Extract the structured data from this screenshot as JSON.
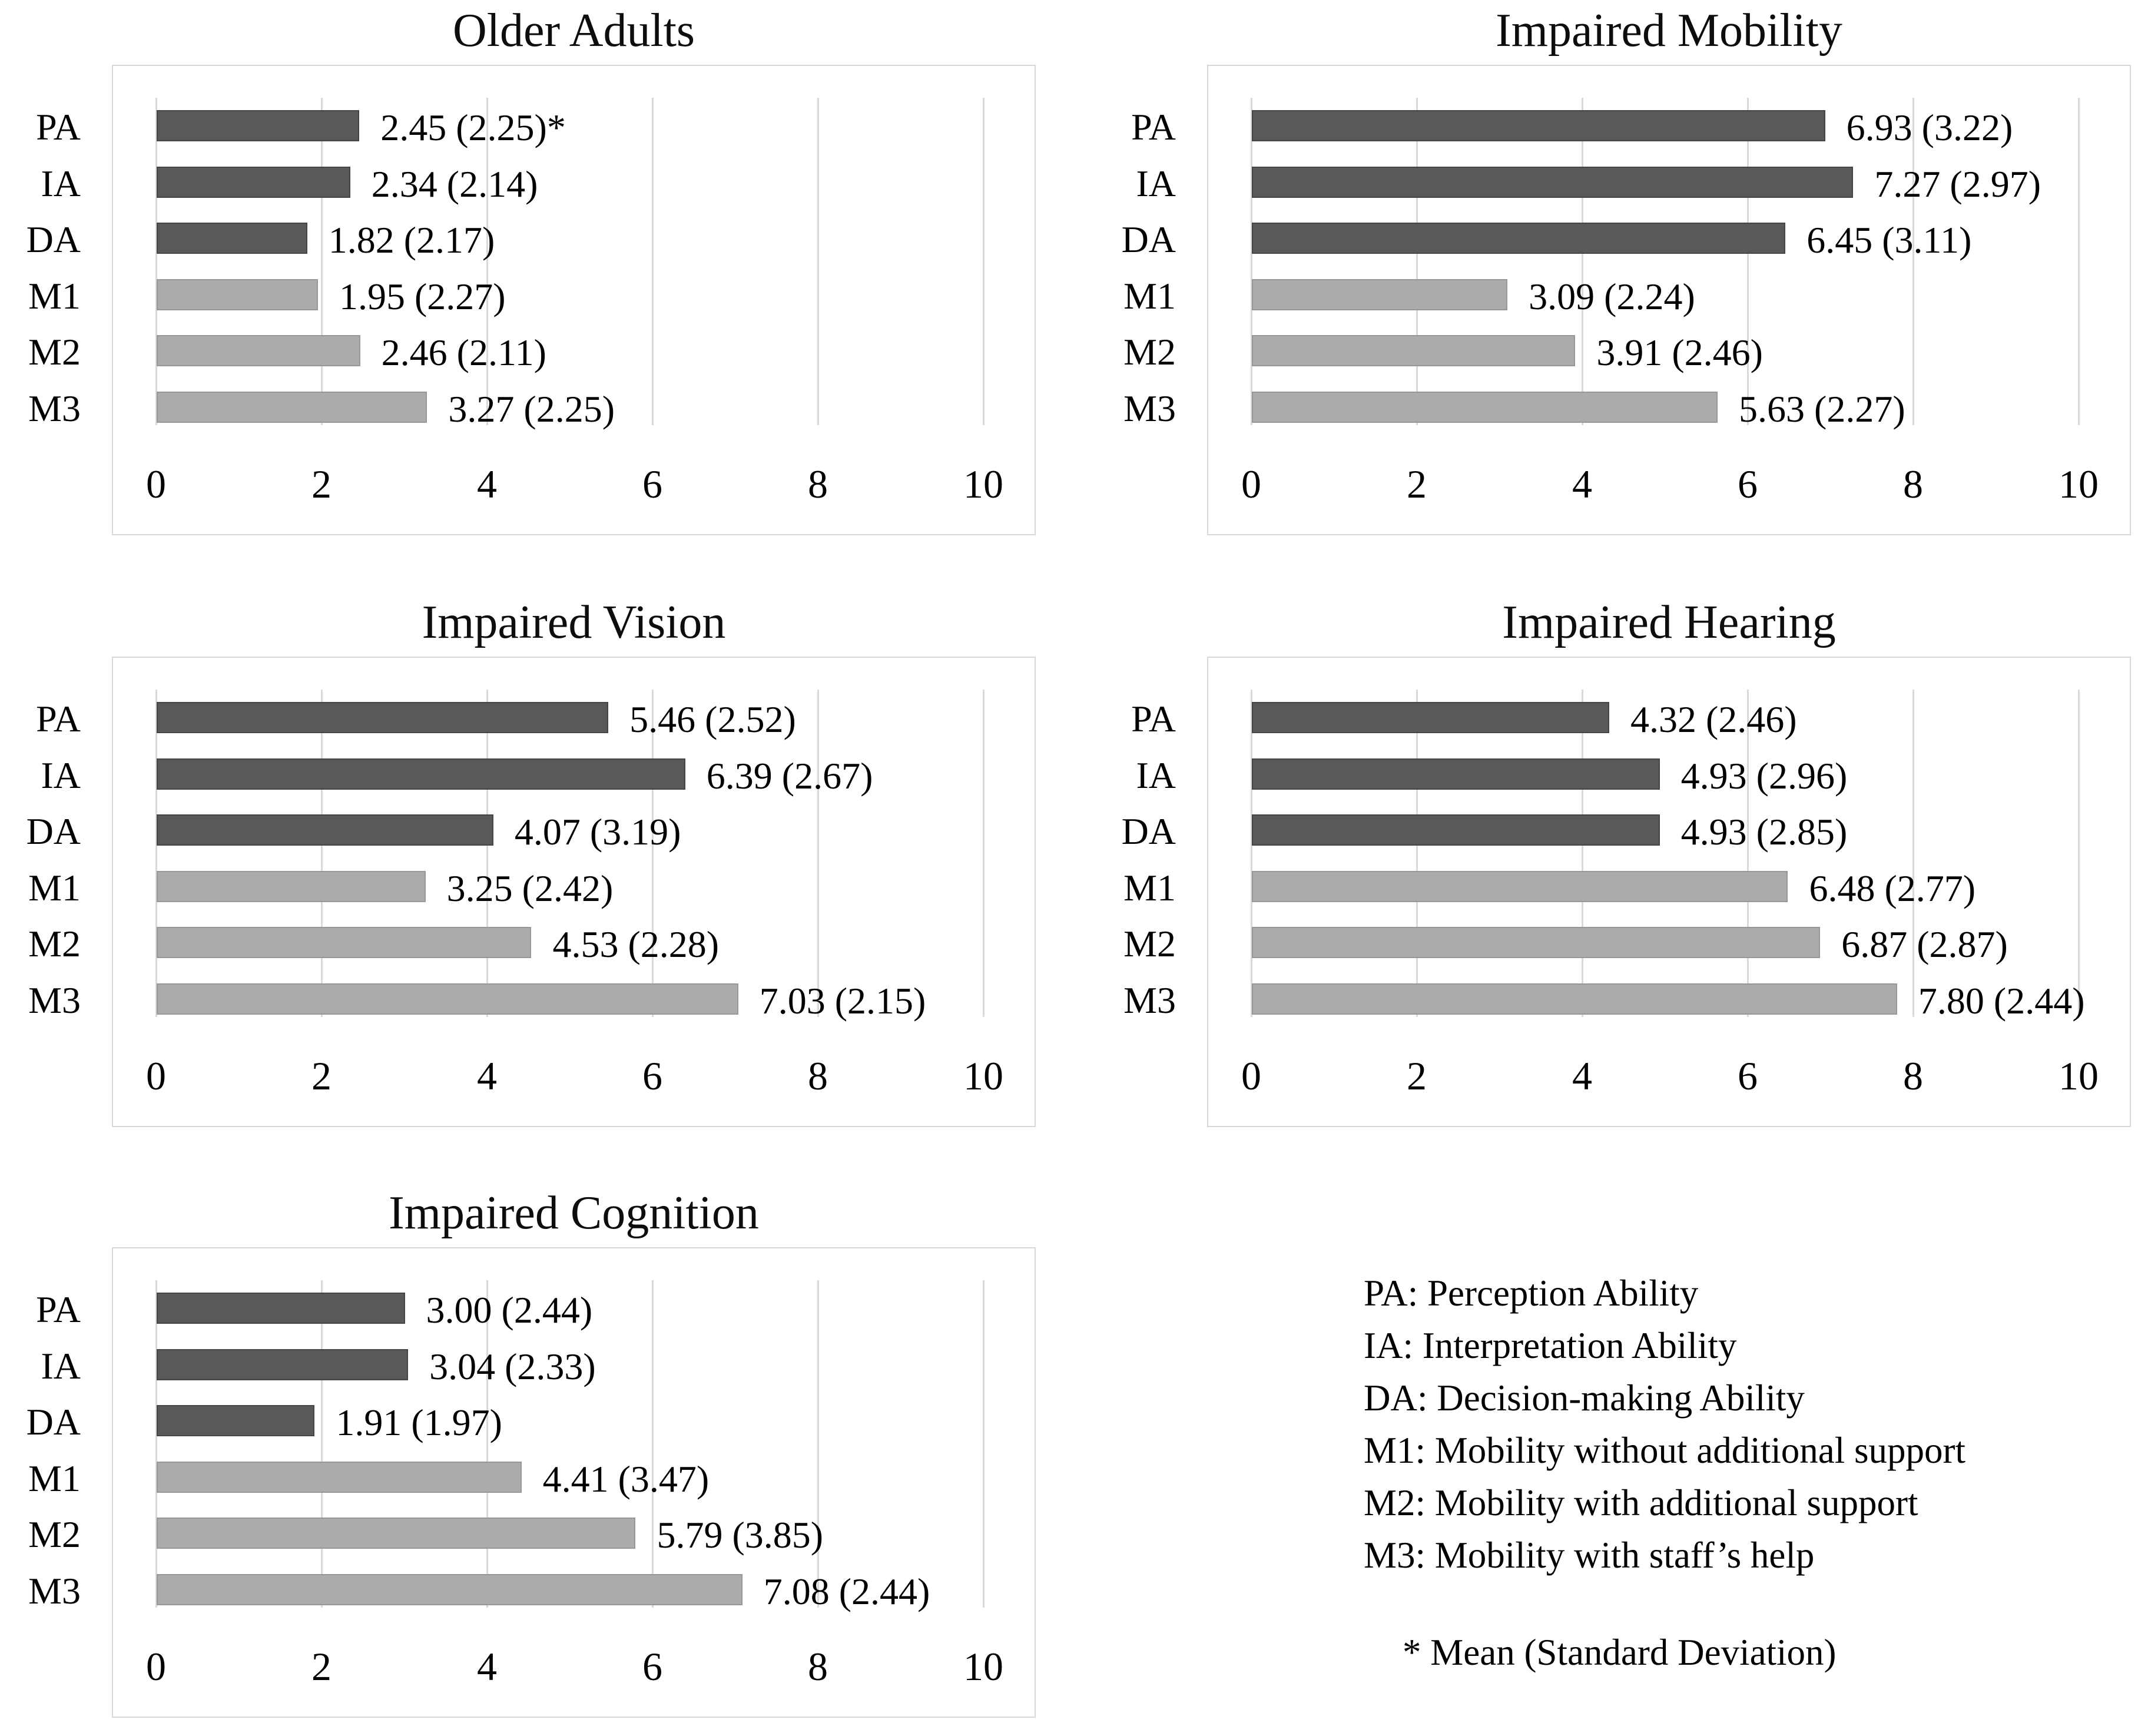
{
  "colors": {
    "dark_bar": "#595959",
    "dark_bar_border": "#454545",
    "light_bar": "#ababab",
    "light_bar_border": "#979797",
    "gridline": "#d9d9d9",
    "chart_border": "#d8d8d8",
    "text": "#000000"
  },
  "bar_shades": {
    "PA": "dark",
    "IA": "dark",
    "DA": "dark",
    "M1": "light",
    "M2": "light",
    "M3": "light"
  },
  "chart_data": [
    {
      "type": "bar",
      "orientation": "horizontal",
      "position": "top-left",
      "title": "Older Adults",
      "categories": [
        "PA",
        "IA",
        "DA",
        "M1",
        "M2",
        "M3"
      ],
      "means": [
        2.45,
        2.34,
        1.82,
        1.95,
        2.46,
        3.27
      ],
      "sds": [
        2.25,
        2.14,
        2.17,
        2.27,
        2.11,
        2.25
      ],
      "labels": [
        "2.45 (2.25)*",
        "2.34 (2.14)",
        "1.82 (2.17)",
        "1.95 (2.27)",
        "2.46 (2.11)",
        "3.27 (2.25)"
      ],
      "xlim": [
        0,
        10
      ],
      "xticks": [
        0,
        2,
        4,
        6,
        8,
        10
      ],
      "grid": true,
      "legend_position": "none"
    },
    {
      "type": "bar",
      "orientation": "horizontal",
      "position": "top-right",
      "title": "Impaired Mobility",
      "categories": [
        "PA",
        "IA",
        "DA",
        "M1",
        "M2",
        "M3"
      ],
      "means": [
        6.93,
        7.27,
        6.45,
        3.09,
        3.91,
        5.63
      ],
      "sds": [
        3.22,
        2.97,
        3.11,
        2.24,
        2.46,
        2.27
      ],
      "labels": [
        "6.93 (3.22)",
        "7.27 (2.97)",
        "6.45 (3.11)",
        "3.09 (2.24)",
        "3.91 (2.46)",
        "5.63 (2.27)"
      ],
      "xlim": [
        0,
        10
      ],
      "xticks": [
        0,
        2,
        4,
        6,
        8,
        10
      ],
      "grid": true,
      "legend_position": "none"
    },
    {
      "type": "bar",
      "orientation": "horizontal",
      "position": "middle-left",
      "title": "Impaired Vision",
      "categories": [
        "PA",
        "IA",
        "DA",
        "M1",
        "M2",
        "M3"
      ],
      "means": [
        5.46,
        6.39,
        4.07,
        3.25,
        4.53,
        7.03
      ],
      "sds": [
        2.52,
        2.67,
        3.19,
        2.42,
        2.28,
        2.15
      ],
      "labels": [
        "5.46 (2.52)",
        "6.39 (2.67)",
        "4.07 (3.19)",
        "3.25 (2.42)",
        "4.53 (2.28)",
        "7.03 (2.15)"
      ],
      "xlim": [
        0,
        10
      ],
      "xticks": [
        0,
        2,
        4,
        6,
        8,
        10
      ],
      "grid": true,
      "legend_position": "none"
    },
    {
      "type": "bar",
      "orientation": "horizontal",
      "position": "middle-right",
      "title": "Impaired Hearing",
      "categories": [
        "PA",
        "IA",
        "DA",
        "M1",
        "M2",
        "M3"
      ],
      "means": [
        4.32,
        4.93,
        4.93,
        6.48,
        6.87,
        7.8
      ],
      "sds": [
        2.46,
        2.96,
        2.85,
        2.77,
        2.87,
        2.44
      ],
      "labels": [
        "4.32 (2.46)",
        "4.93 (2.96)",
        "4.93 (2.85)",
        "6.48 (2.77)",
        "6.87 (2.87)",
        "7.80 (2.44)"
      ],
      "xlim": [
        0,
        10
      ],
      "xticks": [
        0,
        2,
        4,
        6,
        8,
        10
      ],
      "grid": true,
      "legend_position": "none"
    },
    {
      "type": "bar",
      "orientation": "horizontal",
      "position": "bottom-left",
      "title": "Impaired Cognition",
      "categories": [
        "PA",
        "IA",
        "DA",
        "M1",
        "M2",
        "M3"
      ],
      "means": [
        3.0,
        3.04,
        1.91,
        4.41,
        5.79,
        7.08
      ],
      "sds": [
        2.44,
        2.33,
        1.97,
        3.47,
        3.85,
        2.44
      ],
      "labels": [
        "3.00 (2.44)",
        "3.04 (2.33)",
        "1.91 (1.97)",
        "4.41 (3.47)",
        "5.79 (3.85)",
        "7.08 (2.44)"
      ],
      "xlim": [
        0,
        10
      ],
      "xticks": [
        0,
        2,
        4,
        6,
        8,
        10
      ],
      "grid": true,
      "legend_position": "none"
    }
  ],
  "legend": {
    "items": [
      "PA: Perception Ability",
      "IA: Interpretation Ability",
      "DA: Decision-making Ability",
      "M1: Mobility without additional support",
      "M2: Mobility with additional support",
      "M3: Mobility with staff’s help"
    ],
    "footnote": "* Mean (Standard Deviation)"
  }
}
